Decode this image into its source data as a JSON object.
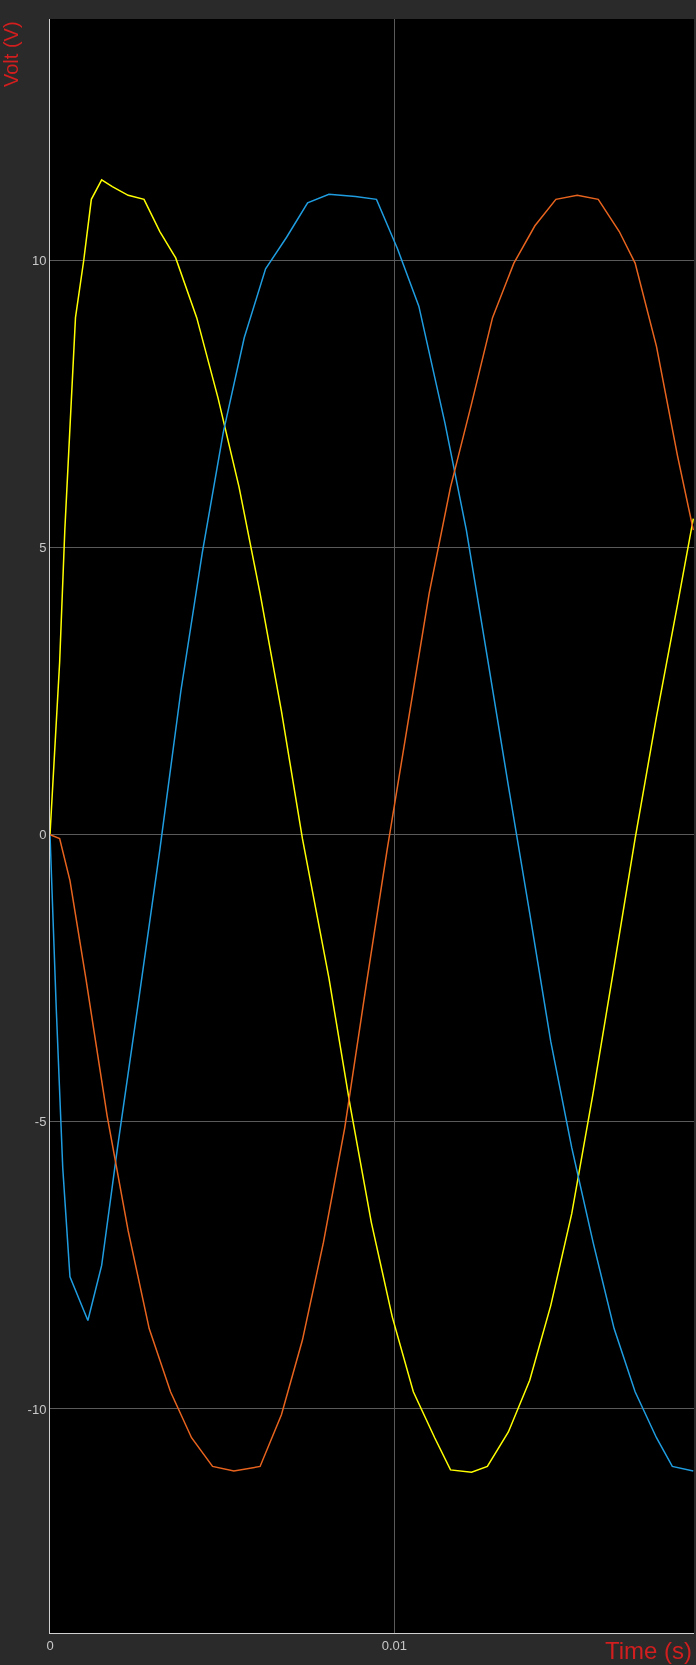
{
  "chart_data": {
    "type": "line",
    "xlabel": "Time (s)",
    "ylabel": "Volt (V)",
    "xlim": [
      0,
      0.0187
    ],
    "ylim": [
      -13.9,
      14.2
    ],
    "xticks": [
      0,
      0.01
    ],
    "yticks": [
      -10,
      -5,
      0,
      5,
      10
    ],
    "grid": true,
    "marker": "none",
    "line_style": "solid",
    "series": [
      {
        "color": "#ffff00",
        "x": [
          0,
          0.00028,
          0.00043,
          0.00074,
          0.00098,
          0.0012,
          0.0015,
          0.00181,
          0.00227,
          0.00273,
          0.00319,
          0.00365,
          0.00426,
          0.00488,
          0.00549,
          0.0061,
          0.00672,
          0.00733,
          0.0081,
          0.00871,
          0.00933,
          0.00994,
          0.01055,
          0.01117,
          0.01163,
          0.01224,
          0.0127,
          0.01331,
          0.01393,
          0.01454,
          0.01515,
          0.01577,
          0.01638,
          0.01699,
          0.01761,
          0.01822,
          0.01868
        ],
        "values": [
          0,
          3.0,
          5.3,
          9.0,
          10.0,
          11.06,
          11.4,
          11.28,
          11.13,
          11.06,
          10.5,
          10.04,
          9.0,
          7.6,
          6.05,
          4.2,
          2.15,
          -0.07,
          -2.5,
          -4.7,
          -6.75,
          -8.4,
          -9.7,
          -10.5,
          -11.06,
          -11.1,
          -11.0,
          -10.4,
          -9.5,
          -8.2,
          -6.6,
          -4.5,
          -2.3,
          -0.07,
          2.05,
          4.0,
          5.5
        ]
      },
      {
        "color": "#1f9de0",
        "x": [
          0,
          0.00018,
          0.00037,
          0.00058,
          0.0011,
          0.0015,
          0.00196,
          0.00258,
          0.00319,
          0.0038,
          0.00442,
          0.00503,
          0.00564,
          0.00626,
          0.00687,
          0.00748,
          0.0081,
          0.00887,
          0.00948,
          0.01009,
          0.01071,
          0.01147,
          0.01209,
          0.0127,
          0.01331,
          0.01393,
          0.01454,
          0.01515,
          0.01577,
          0.01638,
          0.01699,
          0.01761,
          0.01807,
          0.01868
        ],
        "values": [
          0,
          -3.0,
          -5.8,
          -7.7,
          -8.46,
          -7.5,
          -5.45,
          -2.86,
          -0.26,
          2.5,
          4.9,
          7.0,
          8.65,
          9.85,
          10.4,
          11.0,
          11.15,
          11.11,
          11.06,
          10.2,
          9.2,
          7.16,
          5.3,
          3.08,
          0.85,
          -1.37,
          -3.6,
          -5.45,
          -7.1,
          -8.6,
          -9.7,
          -10.5,
          -11.0,
          -11.08
        ]
      },
      {
        "color": "#e8641e",
        "x": [
          0,
          0.00028,
          0.00058,
          0.00104,
          0.00166,
          0.00227,
          0.00288,
          0.0035,
          0.00411,
          0.00472,
          0.00534,
          0.0061,
          0.00672,
          0.00733,
          0.00794,
          0.00856,
          0.00917,
          0.00979,
          0.0104,
          0.01101,
          0.01163,
          0.01224,
          0.01285,
          0.01347,
          0.01408,
          0.01469,
          0.01531,
          0.01592,
          0.01653,
          0.01699,
          0.01761,
          0.01822,
          0.01868
        ],
        "values": [
          0,
          -0.07,
          -0.8,
          -2.5,
          -4.9,
          -6.9,
          -8.6,
          -9.7,
          -10.5,
          -11.0,
          -11.08,
          -11.0,
          -10.1,
          -8.8,
          -7.1,
          -5.1,
          -2.67,
          -0.26,
          1.97,
          4.2,
          6.05,
          7.5,
          9.0,
          9.95,
          10.6,
          11.06,
          11.13,
          11.06,
          10.5,
          9.95,
          8.5,
          6.6,
          5.3
        ]
      }
    ]
  }
}
